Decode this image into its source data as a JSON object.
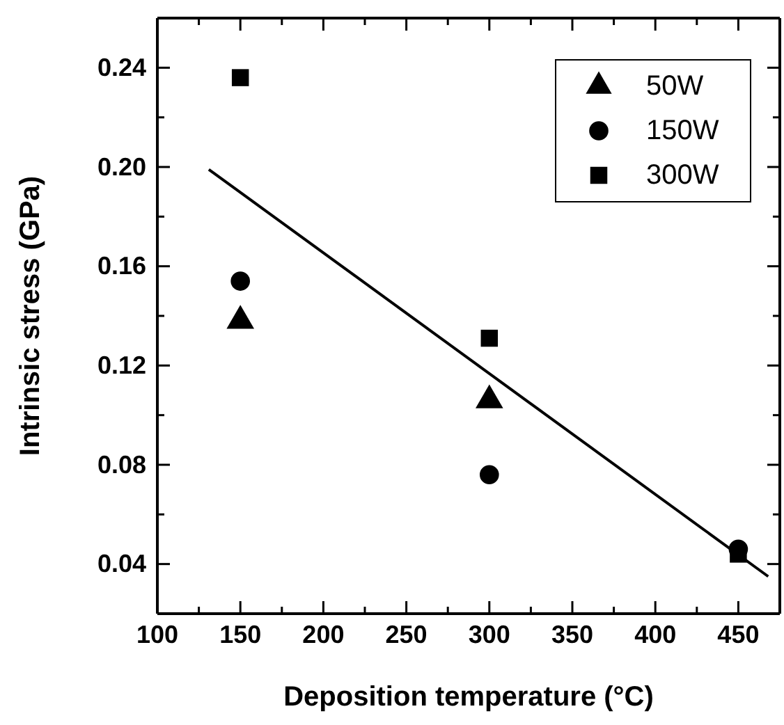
{
  "chart_data": {
    "type": "scatter",
    "xlabel": "Deposition temperature (°C)",
    "ylabel": "Intrinsic stress (GPa)",
    "x": [
      150,
      300,
      450
    ],
    "series": [
      {
        "name": "50W",
        "color": "#000000",
        "marker": "triangle",
        "values": [
          0.138,
          0.106,
          null
        ]
      },
      {
        "name": "150W",
        "color": "#000000",
        "marker": "circle",
        "values": [
          0.154,
          0.076,
          0.046
        ]
      },
      {
        "name": "300W",
        "color": "#000000",
        "marker": "square",
        "values": [
          0.236,
          0.131,
          0.044
        ]
      },
      {
        "type": "line",
        "color": "#000000",
        "marker": "none",
        "line_style": "solid",
        "x": [
          131,
          468
        ],
        "values": [
          0.199,
          0.035
        ]
      }
    ],
    "xlim": [
      100,
      475
    ],
    "ylim": [
      0.02,
      0.26
    ],
    "xticks": [
      100,
      {
        "value": 125,
        "label": null
      },
      150,
      {
        "value": 175,
        "label": null
      },
      200,
      {
        "value": 225,
        "label": null
      },
      250,
      {
        "value": 275,
        "label": null
      },
      300,
      {
        "value": 325,
        "label": null
      },
      350,
      {
        "value": 375,
        "label": null
      },
      400,
      {
        "value": 425,
        "label": null
      },
      450,
      {
        "value": 475,
        "label": null
      }
    ],
    "yticks": [
      {
        "value": 0.02,
        "label": null
      },
      {
        "value": 0.04,
        "label": "0.04"
      },
      {
        "value": 0.06,
        "label": null
      },
      {
        "value": 0.08,
        "label": "0.08"
      },
      {
        "value": 0.1,
        "label": null
      },
      {
        "value": 0.12,
        "label": "0.12"
      },
      {
        "value": 0.14,
        "label": null
      },
      {
        "value": 0.16,
        "label": "0.16"
      },
      {
        "value": 0.18,
        "label": null
      },
      {
        "value": 0.2,
        "label": "0.20"
      },
      {
        "value": 0.22,
        "label": null
      },
      {
        "value": 0.24,
        "label": "0.24"
      },
      {
        "value": 0.26,
        "label": null
      }
    ],
    "legend": "top right",
    "grid": false
  }
}
